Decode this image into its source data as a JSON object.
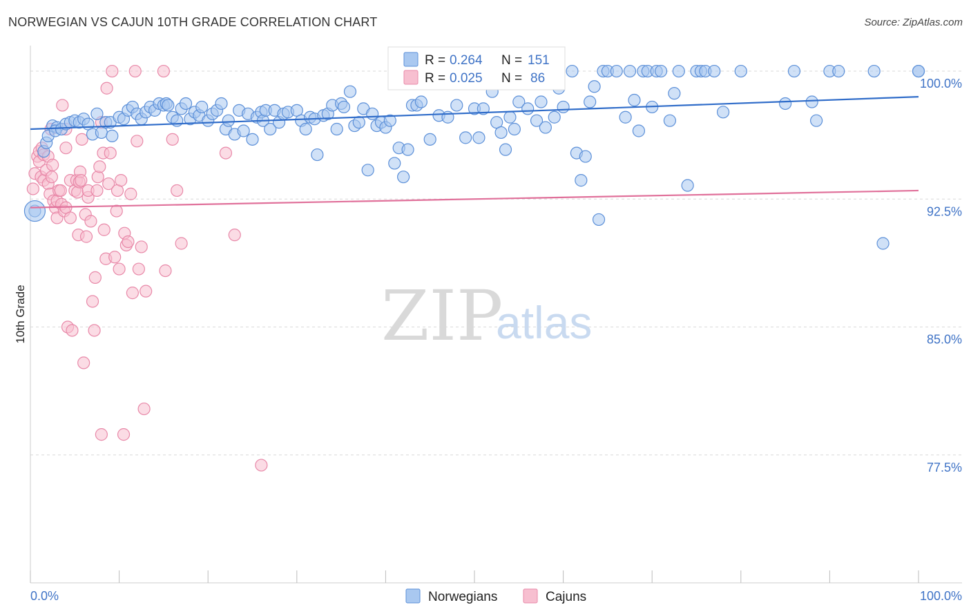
{
  "title": "NORWEGIAN VS CAJUN 10TH GRADE CORRELATION CHART",
  "source": "Source: ZipAtlas.com",
  "watermark": {
    "zip": "ZIP",
    "atlas": "atlas"
  },
  "colors": {
    "blue_fill": "#a9c8f0",
    "blue_stroke": "#5b8fd8",
    "blue_line": "#2f6cc9",
    "pink_fill": "#f7bfd0",
    "pink_stroke": "#e888a8",
    "pink_line": "#e0709a",
    "grid": "#d8d8d8",
    "axis_text": "#3f73c6"
  },
  "chart_data": {
    "type": "scatter",
    "title": "NORWEGIAN VS CAJUN 10TH GRADE CORRELATION CHART",
    "xlabel": "",
    "ylabel": "10th Grade",
    "xlim": [
      0,
      100
    ],
    "ylim": [
      70.0,
      101.5
    ],
    "x_tick_labels": [
      "0.0%",
      "100.0%"
    ],
    "y_ticks": [
      100.0,
      92.5,
      85.0,
      77.5
    ],
    "y_tick_labels": [
      "100.0%",
      "92.5%",
      "85.0%",
      "77.5%"
    ],
    "legend": [
      {
        "name": "Norwegians",
        "R_label": "R =",
        "R": "0.264",
        "N_label": "N =",
        "N": "151"
      },
      {
        "name": "Cajuns",
        "R_label": "R =",
        "R": "0.025",
        "N_label": "N =",
        "N": "86"
      }
    ],
    "series": [
      {
        "name": "Norwegians",
        "trend": {
          "x": [
            0,
            100
          ],
          "y": [
            96.6,
            98.5
          ]
        },
        "points": [
          [
            0.5,
            91.8
          ],
          [
            1.5,
            95.3
          ],
          [
            1.8,
            95.8
          ],
          [
            2,
            96.2
          ],
          [
            2.5,
            96.8
          ],
          [
            3,
            96.7
          ],
          [
            2.8,
            96.5
          ],
          [
            3.5,
            96.6
          ],
          [
            4,
            96.9
          ],
          [
            4.5,
            97.0
          ],
          [
            5,
            97.1
          ],
          [
            5.5,
            97.0
          ],
          [
            6,
            97.2
          ],
          [
            6.5,
            96.9
          ],
          [
            7,
            96.3
          ],
          [
            7.5,
            97.5
          ],
          [
            8,
            96.4
          ],
          [
            8.5,
            97.0
          ],
          [
            9,
            97.0
          ],
          [
            9.2,
            96.2
          ],
          [
            10,
            97.3
          ],
          [
            10.5,
            97.2
          ],
          [
            11,
            97.7
          ],
          [
            11.5,
            97.9
          ],
          [
            12,
            97.5
          ],
          [
            12.5,
            97.2
          ],
          [
            13,
            97.6
          ],
          [
            13.5,
            97.9
          ],
          [
            14,
            97.7
          ],
          [
            14.5,
            98.1
          ],
          [
            15,
            98.0
          ],
          [
            15.3,
            98.1
          ],
          [
            15.5,
            98.0
          ],
          [
            16,
            97.3
          ],
          [
            16.5,
            97.1
          ],
          [
            17,
            97.8
          ],
          [
            17.5,
            98.1
          ],
          [
            18,
            97.2
          ],
          [
            18.5,
            97.6
          ],
          [
            19,
            97.4
          ],
          [
            19.3,
            97.9
          ],
          [
            20,
            97.1
          ],
          [
            20.5,
            97.5
          ],
          [
            21,
            97.7
          ],
          [
            21.5,
            98.1
          ],
          [
            22,
            96.6
          ],
          [
            22.3,
            97.1
          ],
          [
            23,
            96.3
          ],
          [
            23.5,
            97.7
          ],
          [
            24,
            96.5
          ],
          [
            24.5,
            97.5
          ],
          [
            25,
            96.0
          ],
          [
            25.5,
            97.3
          ],
          [
            26,
            97.6
          ],
          [
            26.2,
            97.1
          ],
          [
            26.5,
            97.7
          ],
          [
            27,
            96.6
          ],
          [
            27.5,
            97.7
          ],
          [
            28,
            97.0
          ],
          [
            28.5,
            97.5
          ],
          [
            29,
            97.6
          ],
          [
            30,
            97.7
          ],
          [
            30.5,
            97.1
          ],
          [
            31,
            96.6
          ],
          [
            31.5,
            97.3
          ],
          [
            32,
            97.2
          ],
          [
            32.3,
            95.1
          ],
          [
            33,
            97.4
          ],
          [
            33.5,
            97.5
          ],
          [
            34,
            98.0
          ],
          [
            34.5,
            96.6
          ],
          [
            35,
            98.1
          ],
          [
            35.3,
            97.9
          ],
          [
            36,
            98.8
          ],
          [
            36.5,
            96.8
          ],
          [
            37,
            97.0
          ],
          [
            37.5,
            97.8
          ],
          [
            38,
            94.2
          ],
          [
            38.5,
            97.5
          ],
          [
            39,
            96.8
          ],
          [
            39.5,
            97.0
          ],
          [
            40,
            96.7
          ],
          [
            40.5,
            97.1
          ],
          [
            41,
            94.6
          ],
          [
            41.5,
            95.5
          ],
          [
            42,
            93.8
          ],
          [
            42.5,
            95.4
          ],
          [
            43,
            98.0
          ],
          [
            43.5,
            98.0
          ],
          [
            44,
            98.2
          ],
          [
            45,
            96.0
          ],
          [
            46,
            97.4
          ],
          [
            47,
            97.3
          ],
          [
            48,
            98.0
          ],
          [
            49,
            96.1
          ],
          [
            50,
            97.8
          ],
          [
            50.5,
            96.1
          ],
          [
            51,
            97.8
          ],
          [
            52,
            98.8
          ],
          [
            52.5,
            97.0
          ],
          [
            53,
            96.4
          ],
          [
            53.5,
            95.4
          ],
          [
            54,
            97.3
          ],
          [
            54.5,
            96.6
          ],
          [
            55,
            98.2
          ],
          [
            56,
            97.8
          ],
          [
            57,
            97.1
          ],
          [
            57.5,
            98.2
          ],
          [
            58,
            96.7
          ],
          [
            59,
            97.3
          ],
          [
            59.5,
            99.0
          ],
          [
            60,
            97.9
          ],
          [
            61,
            100.0
          ],
          [
            61.5,
            95.2
          ],
          [
            62,
            93.6
          ],
          [
            62.5,
            95.0
          ],
          [
            63,
            98.2
          ],
          [
            63.5,
            99.1
          ],
          [
            64,
            91.3
          ],
          [
            64.5,
            100.0
          ],
          [
            65,
            100.0
          ],
          [
            66,
            100.0
          ],
          [
            67,
            97.3
          ],
          [
            67.5,
            100.0
          ],
          [
            68,
            98.3
          ],
          [
            68.5,
            96.5
          ],
          [
            69,
            100.0
          ],
          [
            69.5,
            100.0
          ],
          [
            70,
            97.9
          ],
          [
            70.5,
            100.0
          ],
          [
            71,
            100.0
          ],
          [
            72,
            97.1
          ],
          [
            72.5,
            98.7
          ],
          [
            73,
            100.0
          ],
          [
            74,
            93.3
          ],
          [
            75,
            100.0
          ],
          [
            75.5,
            100.0
          ],
          [
            76,
            100.0
          ],
          [
            77,
            100.0
          ],
          [
            78,
            97.6
          ],
          [
            80,
            100.0
          ],
          [
            85,
            98.1
          ],
          [
            86,
            100.0
          ],
          [
            88,
            98.2
          ],
          [
            88.5,
            97.1
          ],
          [
            90,
            100.0
          ],
          [
            91,
            100.0
          ],
          [
            95,
            100.0
          ],
          [
            96,
            89.9
          ],
          [
            100,
            100.0
          ],
          [
            100,
            100.0
          ]
        ]
      },
      {
        "name": "Cajuns",
        "trend": {
          "x": [
            0,
            100
          ],
          "y": [
            92.0,
            93.0
          ]
        },
        "points": [
          [
            0.3,
            93.1
          ],
          [
            0.5,
            94.0
          ],
          [
            0.8,
            95.0
          ],
          [
            1,
            95.3
          ],
          [
            1,
            94.7
          ],
          [
            1.2,
            93.8
          ],
          [
            1.3,
            95.5
          ],
          [
            1.5,
            93.6
          ],
          [
            1.5,
            95.1
          ],
          [
            1.8,
            94.2
          ],
          [
            2,
            95.0
          ],
          [
            2,
            93.4
          ],
          [
            2.2,
            92.8
          ],
          [
            2.3,
            96.6
          ],
          [
            2.4,
            93.8
          ],
          [
            2.5,
            94.5
          ],
          [
            2.6,
            92.4
          ],
          [
            2.8,
            92.0
          ],
          [
            3,
            92.4
          ],
          [
            3,
            91.4
          ],
          [
            3.2,
            93.0
          ],
          [
            3.4,
            93.0
          ],
          [
            3.5,
            92.2
          ],
          [
            3.6,
            98.0
          ],
          [
            3.8,
            91.8
          ],
          [
            4,
            95.5
          ],
          [
            4,
            96.6
          ],
          [
            4,
            92.0
          ],
          [
            4.2,
            85.0
          ],
          [
            4.5,
            91.4
          ],
          [
            4.5,
            93.6
          ],
          [
            4.7,
            84.8
          ],
          [
            5,
            93.0
          ],
          [
            5.2,
            93.6
          ],
          [
            5.3,
            92.9
          ],
          [
            5.4,
            90.4
          ],
          [
            5.5,
            93.5
          ],
          [
            5.6,
            94.1
          ],
          [
            5.7,
            93.6
          ],
          [
            5.8,
            96.0
          ],
          [
            6,
            82.9
          ],
          [
            6.2,
            91.6
          ],
          [
            6.3,
            90.3
          ],
          [
            6.5,
            92.6
          ],
          [
            6.5,
            93.0
          ],
          [
            6.8,
            91.2
          ],
          [
            7,
            86.5
          ],
          [
            7.2,
            84.8
          ],
          [
            7.3,
            87.9
          ],
          [
            7.5,
            93.0
          ],
          [
            7.6,
            93.8
          ],
          [
            7.8,
            94.4
          ],
          [
            8,
            78.7
          ],
          [
            8,
            97.0
          ],
          [
            8.2,
            95.2
          ],
          [
            8.3,
            90.7
          ],
          [
            8.5,
            89.0
          ],
          [
            8.6,
            99.0
          ],
          [
            8.8,
            93.4
          ],
          [
            9,
            95.2
          ],
          [
            9.2,
            100.0
          ],
          [
            9.5,
            89.1
          ],
          [
            9.7,
            91.8
          ],
          [
            9.8,
            93.0
          ],
          [
            10,
            88.4
          ],
          [
            10.2,
            93.6
          ],
          [
            10.5,
            78.7
          ],
          [
            10.6,
            90.5
          ],
          [
            10.8,
            89.8
          ],
          [
            11,
            90.0
          ],
          [
            11.3,
            92.8
          ],
          [
            11.5,
            87.0
          ],
          [
            11.8,
            100.0
          ],
          [
            12,
            95.9
          ],
          [
            12.2,
            88.4
          ],
          [
            12.5,
            89.7
          ],
          [
            12.8,
            80.2
          ],
          [
            13,
            87.1
          ],
          [
            15,
            100.0
          ],
          [
            15.2,
            88.3
          ],
          [
            16,
            96.0
          ],
          [
            16.5,
            93.0
          ],
          [
            17,
            89.9
          ],
          [
            22,
            95.2
          ],
          [
            23,
            90.4
          ],
          [
            26,
            76.9
          ]
        ]
      }
    ]
  }
}
